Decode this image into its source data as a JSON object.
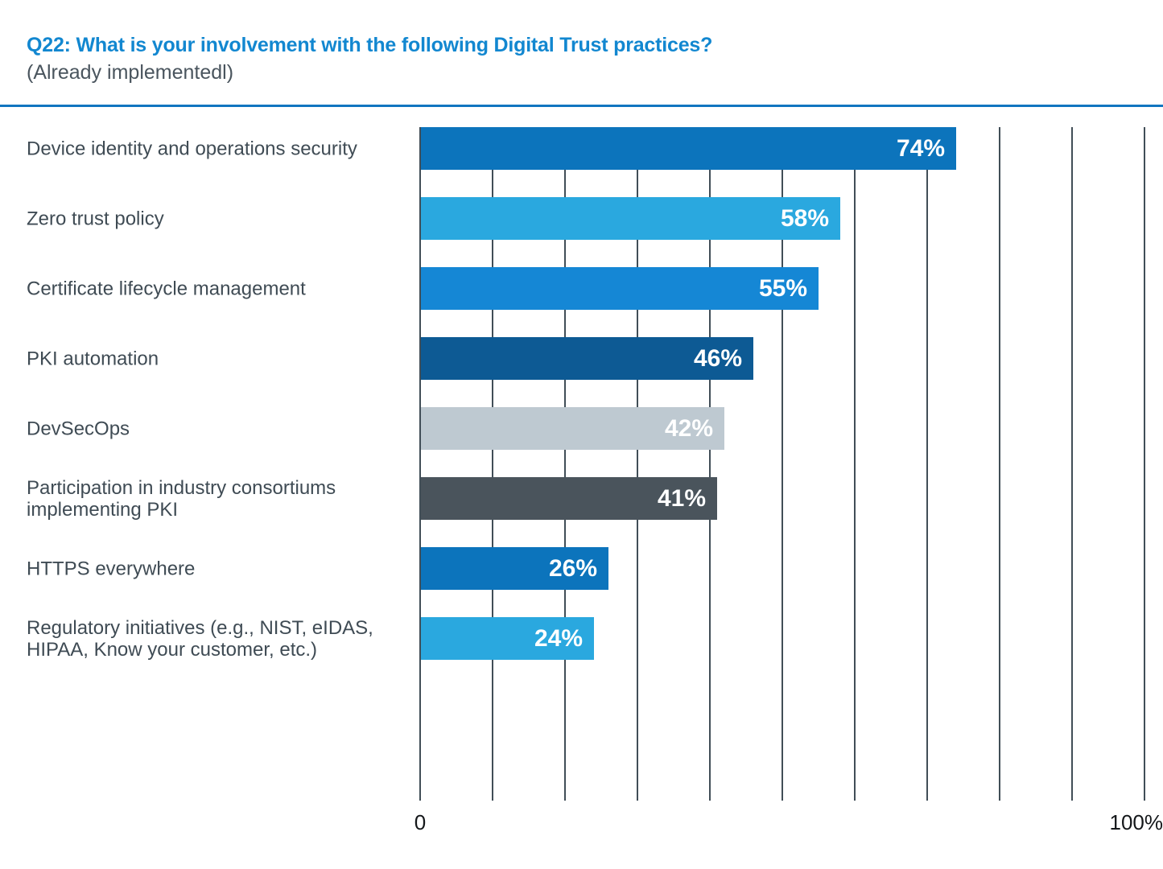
{
  "header": {
    "title": "Q22: What is your involvement with the following Digital Trust practices?",
    "subtitle": "(Already implementedl)"
  },
  "chart_data": {
    "type": "bar",
    "orientation": "horizontal",
    "title": "Q22: What is your involvement with the following Digital Trust practices? (Already implementedl)",
    "xlabel": "",
    "ylabel": "",
    "categories": [
      "Device identity and operations security",
      "Zero trust policy",
      "Certificate lifecycle management",
      "PKI automation",
      "DevSecOps",
      "Participation in industry consortiums\nimplementing PKI",
      "HTTPS everywhere",
      "Regulatory initiatives (e.g., NIST, eIDAS,\nHIPAA, Know your customer, etc.)"
    ],
    "values": [
      74,
      58,
      55,
      46,
      42,
      41,
      26,
      24
    ],
    "value_labels": [
      "74%",
      "58%",
      "55%",
      "46%",
      "42%",
      "41%",
      "26%",
      "24%"
    ],
    "bar_colors": [
      "#0C74BC",
      "#2AA8DF",
      "#1587D5",
      "#0D5A94",
      "#BEC9D1",
      "#4A545C",
      "#0C74BC",
      "#2AA8DF"
    ],
    "xlim": [
      0,
      100
    ],
    "grid": true,
    "grid_interval_percent": 10,
    "x_axis": {
      "min_label": "0",
      "max_label": "100%"
    },
    "legend": "none",
    "value_label_position": "inside-right",
    "value_label_color": "#FFFFFF"
  },
  "colors": {
    "background": "#FFFFFF",
    "title": "#1287D0",
    "subtitle": "#4A555E",
    "divider": "#1175C0",
    "category_label": "#3F4B54",
    "gridline": "#414E57",
    "axis_label": "#14171A",
    "value_label": "#FFFFFF"
  }
}
